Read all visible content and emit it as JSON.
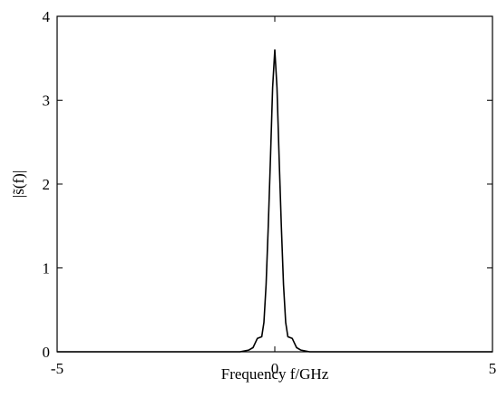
{
  "chart_data": {
    "type": "line",
    "xlabel": "Frequency f/GHz",
    "ylabel": "|s̃(f)|",
    "xlim": [
      -5,
      5
    ],
    "ylim": [
      0,
      4
    ],
    "xticks": [
      -5,
      0,
      5
    ],
    "yticks": [
      0,
      1,
      2,
      3,
      4
    ],
    "grid": false,
    "series": [
      {
        "line_color": "#000000",
        "x": [
          -5,
          -0.8,
          -0.6,
          -0.5,
          -0.4,
          -0.3,
          -0.25,
          -0.2,
          -0.15,
          -0.1,
          -0.05,
          0,
          0.05,
          0.1,
          0.15,
          0.2,
          0.25,
          0.3,
          0.4,
          0.5,
          0.6,
          0.8,
          5
        ],
        "y": [
          0,
          0,
          0.02,
          0.05,
          0.16,
          0.18,
          0.35,
          0.8,
          1.5,
          2.3,
          3.15,
          3.6,
          3.15,
          2.3,
          1.5,
          0.8,
          0.35,
          0.18,
          0.16,
          0.05,
          0.02,
          0,
          0
        ]
      }
    ]
  }
}
